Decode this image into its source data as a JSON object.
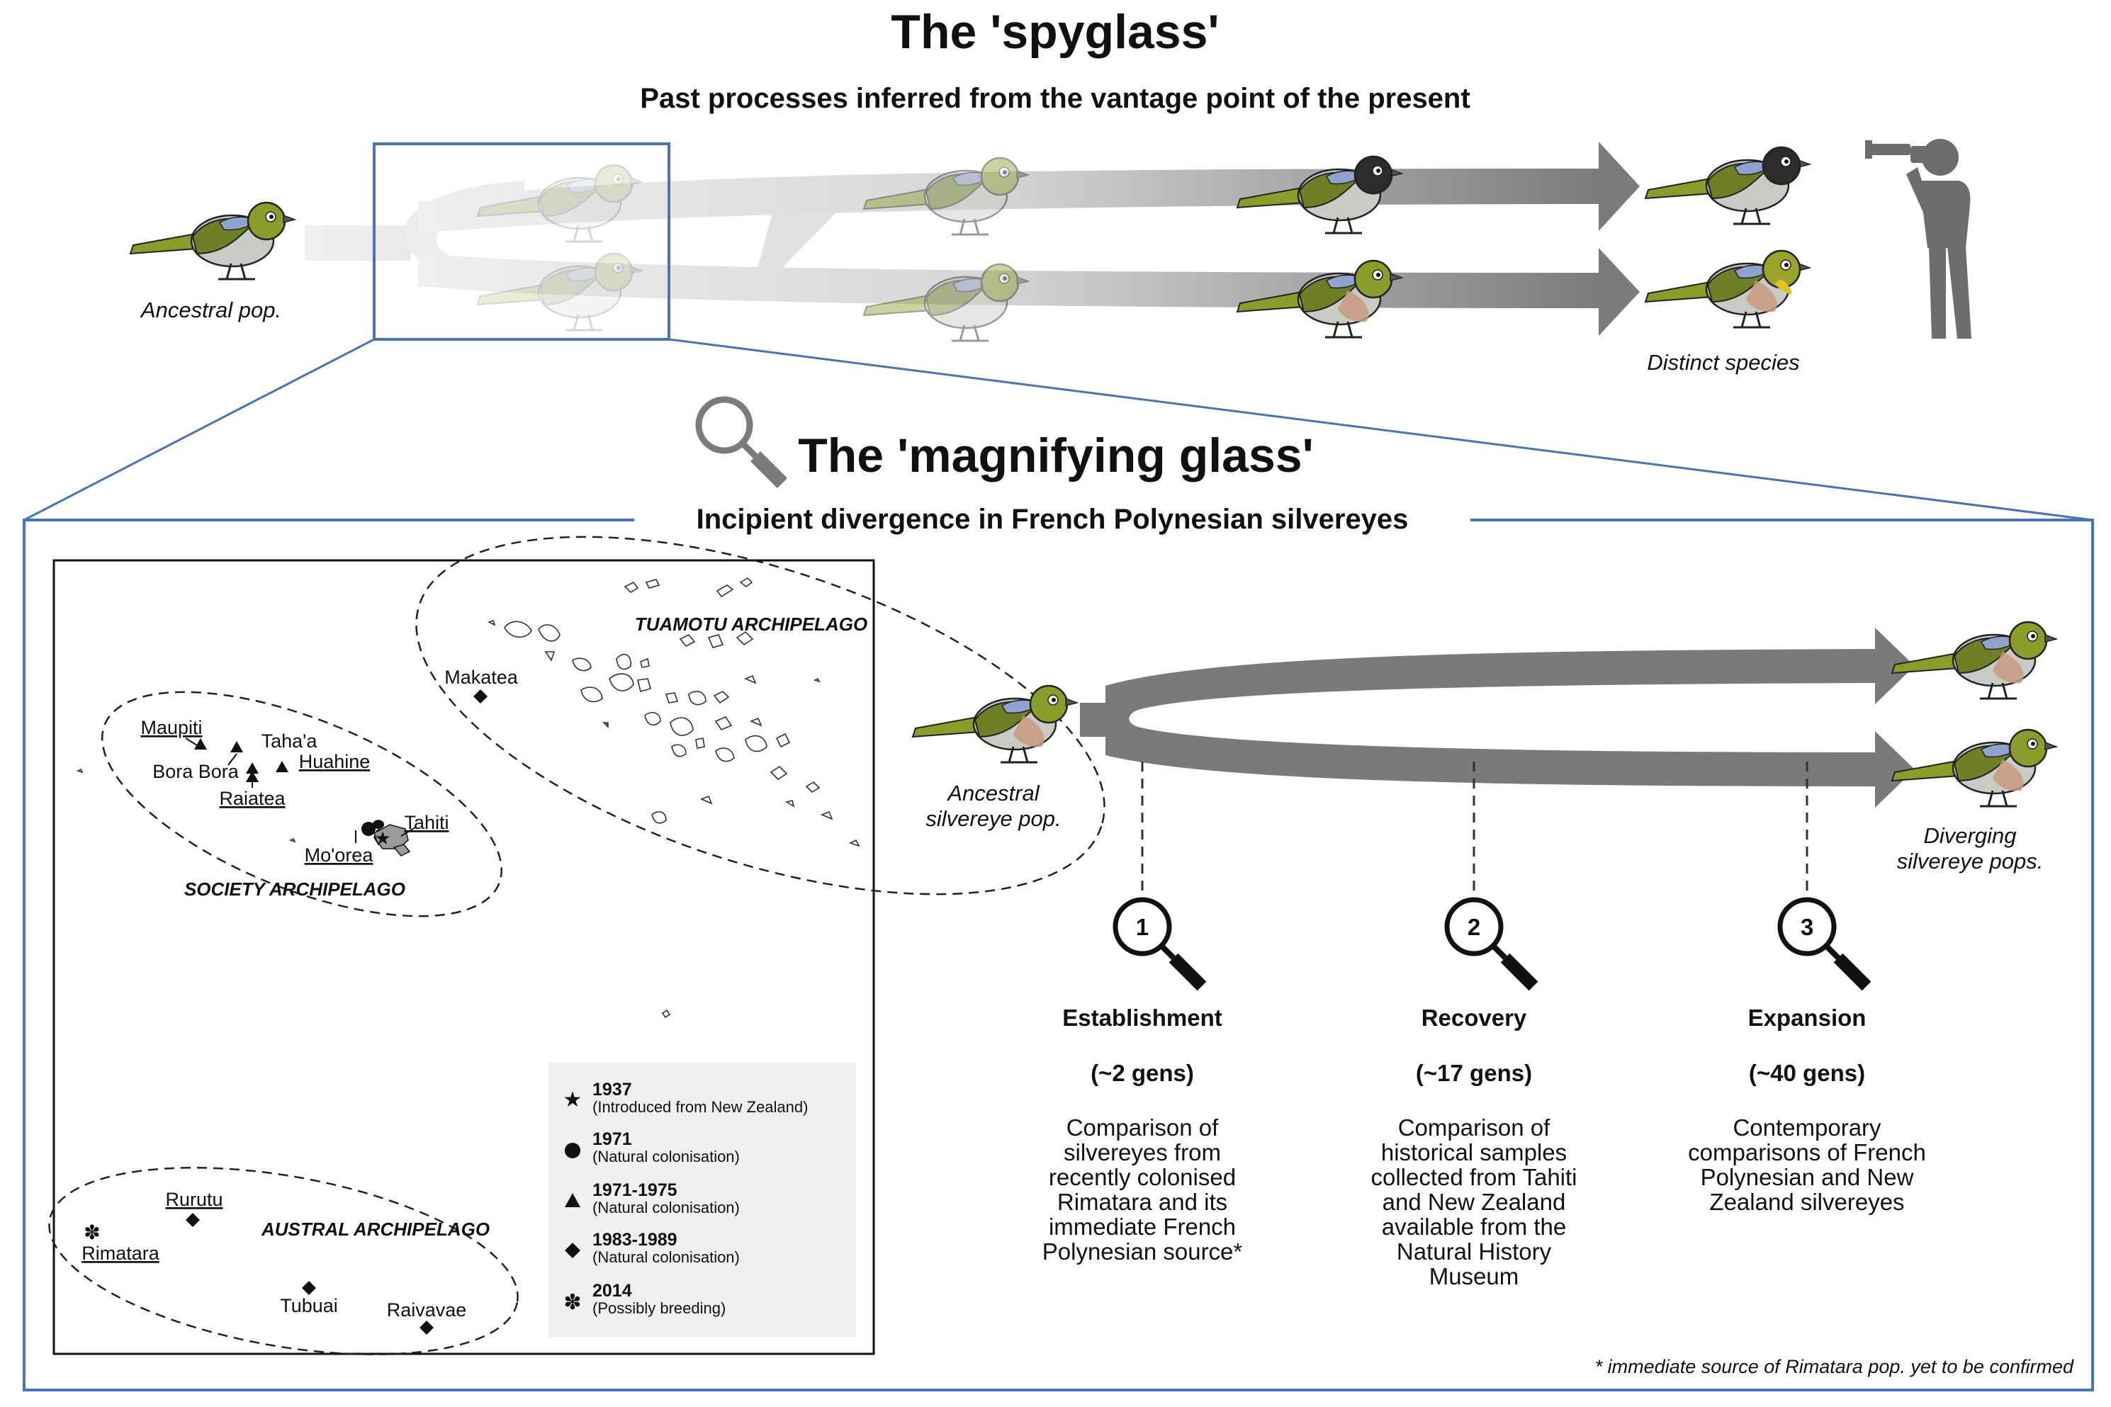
{
  "spyglass": {
    "title": "The 'spyglass'",
    "subtitle": "Past processes inferred from the vantage point of the present",
    "left_label": "Ancestral pop.",
    "right_label": "Distinct species"
  },
  "magnifier": {
    "title": "The 'magnifying glass'",
    "subtitle": "Incipient divergence in French Polynesian silvereyes",
    "left_label": [
      "Ancestral",
      "silvereye pop."
    ],
    "right_label": [
      "Diverging",
      "silvereye pops."
    ],
    "footnote": "* immediate source of Rimatara pop. yet to be confirmed"
  },
  "map": {
    "archipelagos": {
      "tuamotu": "TUAMOTU ARCHIPELAGO",
      "society": "SOCIETY ARCHIPELAGO",
      "austral": "AUSTRAL ARCHIPELAGO"
    },
    "islands": {
      "makatea": "Makatea",
      "maupiti": "Maupiti",
      "tahaa": "Taha'a",
      "borabora": "Bora Bora",
      "huahine": "Huahine",
      "raiatea": "Raiatea",
      "tahiti": "Tahiti",
      "moorea": "Mo'orea",
      "rurutu": "Rurutu",
      "rimatara": "Rimatara",
      "tubuai": "Tubuai",
      "raivavae": "Raivavae"
    },
    "legend": [
      {
        "year": "1937",
        "note": "(Introduced from New Zealand)",
        "symbol": "star-icon"
      },
      {
        "year": "1971",
        "note": "(Natural colonisation)",
        "symbol": "circle-icon"
      },
      {
        "year": "1971-1975",
        "note": "(Natural colonisation)",
        "symbol": "triangle-icon"
      },
      {
        "year": "1983-1989",
        "note": "(Natural colonisation)",
        "symbol": "diamond-icon"
      },
      {
        "year": "2014",
        "note": "(Possibly breeding)",
        "symbol": "asterisk-icon"
      }
    ]
  },
  "stages": [
    {
      "number": "1",
      "name": "Establishment",
      "gens": "(~2 gens)",
      "desc": [
        "Comparison of",
        "silvereyes from",
        "recently colonised",
        "Rimatara and its",
        "immediate French",
        "Polynesian source*"
      ]
    },
    {
      "number": "2",
      "name": "Recovery",
      "gens": "(~17 gens)",
      "desc": [
        "Comparison of",
        "historical samples",
        "collected from Tahiti",
        "and New Zealand",
        "available from the",
        "Natural History",
        "Museum"
      ]
    },
    {
      "number": "3",
      "name": "Expansion",
      "gens": "(~40 gens)",
      "desc": [
        "Contemporary",
        "comparisons of French",
        "Polynesian and New",
        "Zealand silvereyes"
      ]
    }
  ],
  "colors": {
    "frame_blue": "#4a72b8",
    "arrow_gray": "#7a7a7a",
    "bird_olive": "#8c9c2a",
    "bird_wing": "#6f7f25",
    "bird_blue": "#8fa3cc",
    "bird_belly": "#c8cbc4",
    "bird_flank": "#c99a80",
    "person": "#6d6d6d"
  }
}
